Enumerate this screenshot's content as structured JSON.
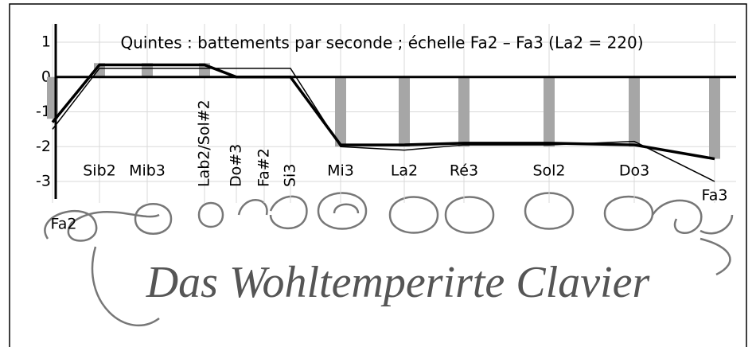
{
  "chart_data": {
    "type": "bar-line",
    "title": "Quintes : battements par seconde ; échelle Fa2 – Fa3 (La2 = 220)",
    "categories": [
      "Fa2",
      "Sib2",
      "Mib3",
      "Lab2/Sol#2",
      "Do#3",
      "Fa#2",
      "Si3",
      "Mi3",
      "La2",
      "Ré3",
      "Sol2",
      "Do3",
      "Fa3"
    ],
    "values": [
      -1.2,
      0.4,
      0.4,
      0.4,
      0,
      0,
      0,
      -2,
      -2,
      -2,
      -2,
      -2,
      -2.35
    ],
    "color": "#a6a6a6",
    "series": [
      {
        "color": "#000000",
        "values": [
          -1.3,
          0.35,
          0.35,
          0.35,
          0,
          0,
          0,
          -1.95,
          -1.95,
          -1.9,
          -1.9,
          -1.95,
          -2.35
        ]
      },
      {
        "color": "#000000",
        "values": [
          -1.5,
          0.25,
          0.25,
          0.25,
          0.25,
          0.25,
          0.25,
          -2,
          -2.1,
          -1.95,
          -1.95,
          -1.85,
          -3
        ]
      }
    ],
    "ylim": [
      -3,
      1
    ],
    "yticks": [
      -3,
      -2,
      -1,
      0,
      1
    ],
    "grid": true
  },
  "background_text": "Das Wohltemperirte Clavier"
}
